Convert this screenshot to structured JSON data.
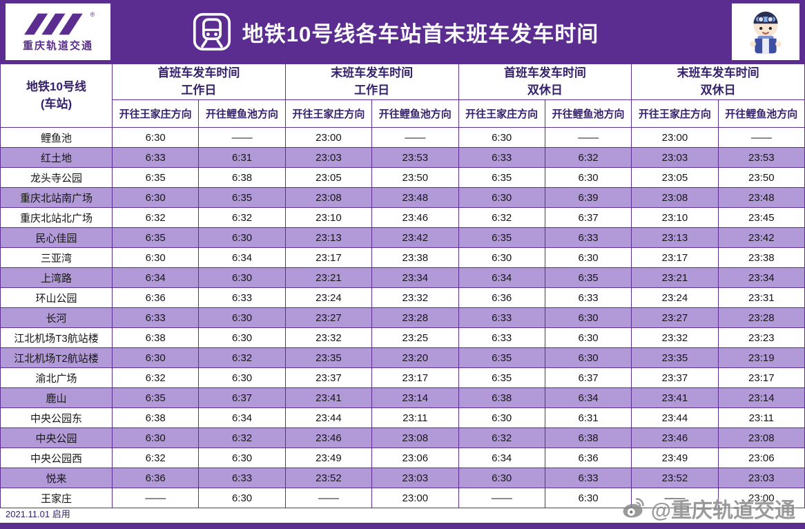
{
  "colors": {
    "brand_purple": "#5b2d90",
    "row_alt": "#b29ad8",
    "header_text": "#35206b",
    "watermark_gray": "#858585"
  },
  "header": {
    "logo_text": "重庆轨道交通",
    "logo_registered_mark": "®",
    "title": "地铁10号线各车站首末班车发车时间"
  },
  "table": {
    "station_header_line1": "地铁10号线",
    "station_header_line2": "(车站)",
    "groups": [
      {
        "line1": "首班车发车时间",
        "line2": "工作日"
      },
      {
        "line1": "末班车发车时间",
        "line2": "工作日"
      },
      {
        "line1": "首班车发车时间",
        "line2": "双休日"
      },
      {
        "line1": "末班车发车时间",
        "line2": "双休日"
      }
    ],
    "direction_headers": [
      "开往王家庄方向",
      "开往鲤鱼池方向"
    ],
    "rows": [
      {
        "station": "鲤鱼池",
        "times": [
          "6:30",
          "——",
          "23:00",
          "——",
          "6:30",
          "——",
          "23:00",
          "——"
        ]
      },
      {
        "station": "红土地",
        "times": [
          "6:33",
          "6:31",
          "23:03",
          "23:53",
          "6:33",
          "6:32",
          "23:03",
          "23:53"
        ]
      },
      {
        "station": "龙头寺公园",
        "times": [
          "6:35",
          "6:38",
          "23:05",
          "23:50",
          "6:35",
          "6:30",
          "23:05",
          "23:50"
        ]
      },
      {
        "station": "重庆北站南广场",
        "times": [
          "6:30",
          "6:35",
          "23:08",
          "23:48",
          "6:30",
          "6:39",
          "23:08",
          "23:48"
        ]
      },
      {
        "station": "重庆北站北广场",
        "times": [
          "6:32",
          "6:32",
          "23:10",
          "23:46",
          "6:32",
          "6:37",
          "23:10",
          "23:45"
        ]
      },
      {
        "station": "民心佳园",
        "times": [
          "6:35",
          "6:30",
          "23:13",
          "23:42",
          "6:35",
          "6:33",
          "23:13",
          "23:42"
        ]
      },
      {
        "station": "三亚湾",
        "times": [
          "6:30",
          "6:34",
          "23:17",
          "23:38",
          "6:30",
          "6:30",
          "23:17",
          "23:38"
        ]
      },
      {
        "station": "上湾路",
        "times": [
          "6:34",
          "6:30",
          "23:21",
          "23:34",
          "6:34",
          "6:35",
          "23:21",
          "23:34"
        ]
      },
      {
        "station": "环山公园",
        "times": [
          "6:36",
          "6:33",
          "23:24",
          "23:32",
          "6:36",
          "6:33",
          "23:24",
          "23:31"
        ]
      },
      {
        "station": "长河",
        "times": [
          "6:33",
          "6:30",
          "23:27",
          "23:28",
          "6:33",
          "6:30",
          "23:27",
          "23:28"
        ]
      },
      {
        "station": "江北机场T3航站楼",
        "times": [
          "6:38",
          "6:30",
          "23:32",
          "23:25",
          "6:33",
          "6:30",
          "23:32",
          "23:23"
        ]
      },
      {
        "station": "江北机场T2航站楼",
        "times": [
          "6:30",
          "6:32",
          "23:35",
          "23:20",
          "6:35",
          "6:30",
          "23:35",
          "23:19"
        ]
      },
      {
        "station": "渝北广场",
        "times": [
          "6:32",
          "6:30",
          "23:37",
          "23:17",
          "6:35",
          "6:37",
          "23:37",
          "23:17"
        ]
      },
      {
        "station": "鹿山",
        "times": [
          "6:35",
          "6:37",
          "23:41",
          "23:14",
          "6:38",
          "6:34",
          "23:41",
          "23:14"
        ]
      },
      {
        "station": "中央公园东",
        "times": [
          "6:38",
          "6:34",
          "23:44",
          "23:11",
          "6:30",
          "6:31",
          "23:44",
          "23:11"
        ]
      },
      {
        "station": "中央公园",
        "times": [
          "6:30",
          "6:32",
          "23:46",
          "23:08",
          "6:32",
          "6:38",
          "23:46",
          "23:08"
        ]
      },
      {
        "station": "中央公园西",
        "times": [
          "6:32",
          "6:30",
          "23:49",
          "23:06",
          "6:34",
          "6:36",
          "23:49",
          "23:06"
        ]
      },
      {
        "station": "悦来",
        "times": [
          "6:36",
          "6:33",
          "23:52",
          "23:03",
          "6:30",
          "6:33",
          "23:52",
          "23:03"
        ]
      },
      {
        "station": "王家庄",
        "times": [
          "——",
          "6:30",
          "——",
          "23:00",
          "——",
          "6:30",
          "——",
          "23:00"
        ]
      }
    ]
  },
  "footer": {
    "effective_date": "2021.11.01 启用",
    "watermark": "@重庆轨道交通"
  }
}
